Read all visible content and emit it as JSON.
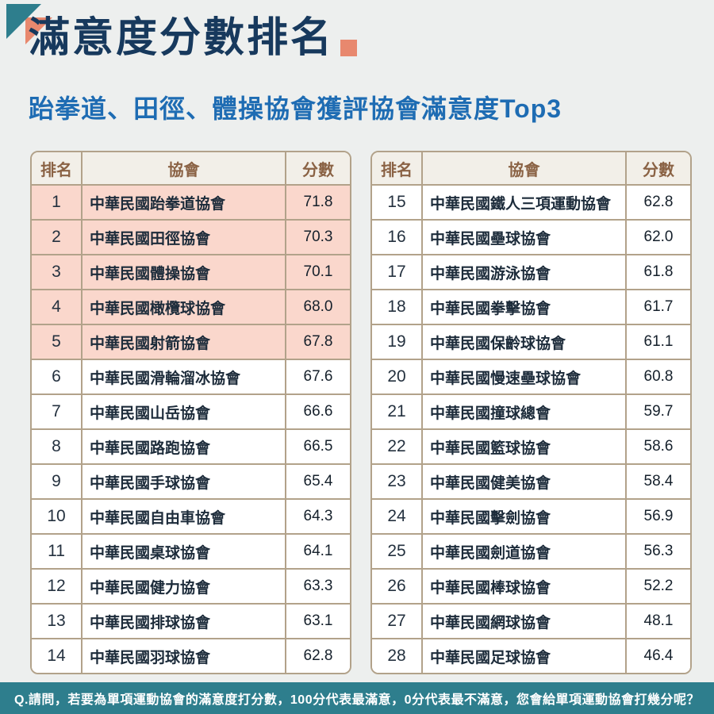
{
  "page": {
    "title": "滿意度分數排名",
    "subtitle": "跆拳道、田徑、體操協會獲評協會滿意度Top3",
    "footer_question": "Q.請問，若要為單項運動協會的滿意度打分數，100分代表最滿意，0分代表最不滿意，您會給單項運動協會打幾分呢？"
  },
  "colors": {
    "teal": "#2e7e8d",
    "coral": "#e8886e",
    "highlight_pink": "#fad7cc",
    "title_navy": "#17395d",
    "subtitle_blue": "#1e6cb3",
    "table_border": "#b2a28a",
    "header_text_brown": "#8a6244",
    "header_row_bg": "#f2efe8",
    "page_bg": "#edefee"
  },
  "chart_data": {
    "type": "table",
    "title": "滿意度分數排名",
    "subtitle": "跆拳道、田徑、體操協會獲評協會滿意度Top3",
    "columns": [
      "排名",
      "協會",
      "分數"
    ],
    "score_range": [
      0,
      100
    ],
    "highlighted_ranks": [
      1,
      2,
      3,
      4,
      5
    ],
    "rows": [
      [
        1,
        "中華民國跆拳道協會",
        71.8
      ],
      [
        2,
        "中華民國田徑協會",
        70.3
      ],
      [
        3,
        "中華民國體操協會",
        70.1
      ],
      [
        4,
        "中華民國橄欖球協會",
        68.0
      ],
      [
        5,
        "中華民國射箭協會",
        67.8
      ],
      [
        6,
        "中華民國滑輪溜冰協會",
        67.6
      ],
      [
        7,
        "中華民國山岳協會",
        66.6
      ],
      [
        8,
        "中華民國路跑協會",
        66.5
      ],
      [
        9,
        "中華民國手球協會",
        65.4
      ],
      [
        10,
        "中華民國自由車協會",
        64.3
      ],
      [
        11,
        "中華民國桌球協會",
        64.1
      ],
      [
        12,
        "中華民國健力協會",
        63.3
      ],
      [
        13,
        "中華民國排球協會",
        63.1
      ],
      [
        14,
        "中華民國羽球協會",
        62.8
      ],
      [
        15,
        "中華民國鐵人三項運動協會",
        62.8
      ],
      [
        16,
        "中華民國壘球協會",
        62.0
      ],
      [
        17,
        "中華民國游泳協會",
        61.8
      ],
      [
        18,
        "中華民國拳擊協會",
        61.7
      ],
      [
        19,
        "中華民國保齡球協會",
        61.1
      ],
      [
        20,
        "中華民國慢速壘球協會",
        60.8
      ],
      [
        21,
        "中華民國撞球總會",
        59.7
      ],
      [
        22,
        "中華民國籃球協會",
        58.6
      ],
      [
        23,
        "中華民國健美協會",
        58.4
      ],
      [
        24,
        "中華民國擊劍協會",
        56.9
      ],
      [
        25,
        "中華民國劍道協會",
        56.3
      ],
      [
        26,
        "中華民國棒球協會",
        52.2
      ],
      [
        27,
        "中華民國網球協會",
        48.1
      ],
      [
        28,
        "中華民國足球協會",
        46.4
      ]
    ]
  },
  "tables": [
    {
      "side": "left",
      "rows": [
        {
          "rank": "1",
          "name": "中華民國跆拳道協會",
          "score": "71.8",
          "highlight": true
        },
        {
          "rank": "2",
          "name": "中華民國田徑協會",
          "score": "70.3",
          "highlight": true
        },
        {
          "rank": "3",
          "name": "中華民國體操協會",
          "score": "70.1",
          "highlight": true
        },
        {
          "rank": "4",
          "name": "中華民國橄欖球協會",
          "score": "68.0",
          "highlight": true
        },
        {
          "rank": "5",
          "name": "中華民國射箭協會",
          "score": "67.8",
          "highlight": true
        },
        {
          "rank": "6",
          "name": "中華民國滑輪溜冰協會",
          "score": "67.6",
          "highlight": false
        },
        {
          "rank": "7",
          "name": "中華民國山岳協會",
          "score": "66.6",
          "highlight": false
        },
        {
          "rank": "8",
          "name": "中華民國路跑協會",
          "score": "66.5",
          "highlight": false
        },
        {
          "rank": "9",
          "name": "中華民國手球協會",
          "score": "65.4",
          "highlight": false
        },
        {
          "rank": "10",
          "name": "中華民國自由車協會",
          "score": "64.3",
          "highlight": false
        },
        {
          "rank": "11",
          "name": "中華民國桌球協會",
          "score": "64.1",
          "highlight": false
        },
        {
          "rank": "12",
          "name": "中華民國健力協會",
          "score": "63.3",
          "highlight": false
        },
        {
          "rank": "13",
          "name": "中華民國排球協會",
          "score": "63.1",
          "highlight": false
        },
        {
          "rank": "14",
          "name": "中華民國羽球協會",
          "score": "62.8",
          "highlight": false
        }
      ]
    },
    {
      "side": "right",
      "rows": [
        {
          "rank": "15",
          "name": "中華民國鐵人三項運動協會",
          "score": "62.8",
          "highlight": false
        },
        {
          "rank": "16",
          "name": "中華民國壘球協會",
          "score": "62.0",
          "highlight": false
        },
        {
          "rank": "17",
          "name": "中華民國游泳協會",
          "score": "61.8",
          "highlight": false
        },
        {
          "rank": "18",
          "name": "中華民國拳擊協會",
          "score": "61.7",
          "highlight": false
        },
        {
          "rank": "19",
          "name": "中華民國保齡球協會",
          "score": "61.1",
          "highlight": false
        },
        {
          "rank": "20",
          "name": "中華民國慢速壘球協會",
          "score": "60.8",
          "highlight": false
        },
        {
          "rank": "21",
          "name": "中華民國撞球總會",
          "score": "59.7",
          "highlight": false
        },
        {
          "rank": "22",
          "name": "中華民國籃球協會",
          "score": "58.6",
          "highlight": false
        },
        {
          "rank": "23",
          "name": "中華民國健美協會",
          "score": "58.4",
          "highlight": false
        },
        {
          "rank": "24",
          "name": "中華民國擊劍協會",
          "score": "56.9",
          "highlight": false
        },
        {
          "rank": "25",
          "name": "中華民國劍道協會",
          "score": "56.3",
          "highlight": false
        },
        {
          "rank": "26",
          "name": "中華民國棒球協會",
          "score": "52.2",
          "highlight": false
        },
        {
          "rank": "27",
          "name": "中華民國網球協會",
          "score": "48.1",
          "highlight": false
        },
        {
          "rank": "28",
          "name": "中華民國足球協會",
          "score": "46.4",
          "highlight": false
        }
      ]
    }
  ]
}
